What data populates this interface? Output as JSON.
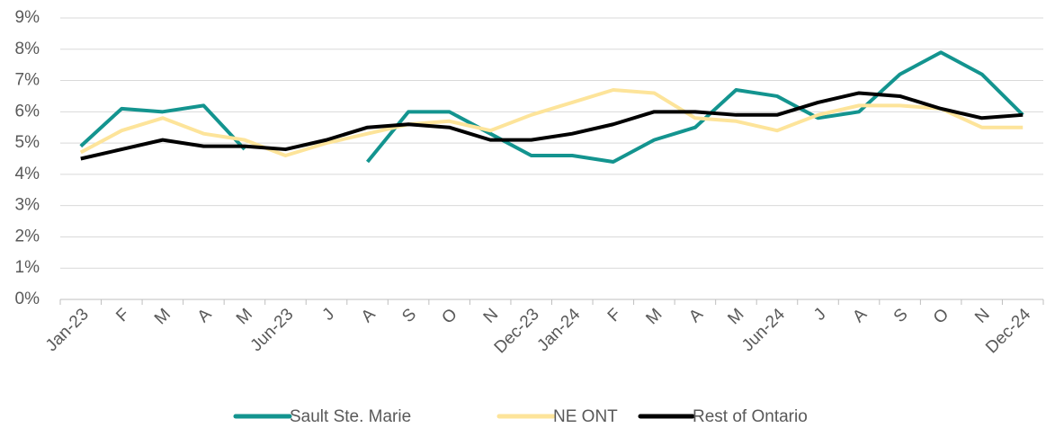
{
  "chart_data": {
    "type": "line",
    "categories": [
      "Jan-23",
      "F",
      "M",
      "A",
      "M",
      "Jun-23",
      "J",
      "A",
      "S",
      "O",
      "N",
      "Dec-23",
      "Jan-24",
      "F",
      "M",
      "A",
      "M",
      "Jun-24",
      "J",
      "A",
      "S",
      "O",
      "N",
      "Dec-24"
    ],
    "series": [
      {
        "name": "Sault Ste. Marie",
        "color": "#13948f",
        "values": [
          4.9,
          6.1,
          6.0,
          6.2,
          4.8,
          null,
          null,
          4.4,
          6.0,
          6.0,
          5.3,
          4.6,
          4.6,
          4.4,
          5.1,
          5.5,
          6.7,
          6.5,
          5.8,
          6.0,
          7.2,
          7.9,
          7.2,
          5.9
        ]
      },
      {
        "name": "NE ONT",
        "color": "#fde49a",
        "values": [
          4.7,
          5.4,
          5.8,
          5.3,
          5.1,
          4.6,
          5.0,
          5.3,
          5.6,
          5.7,
          5.4,
          5.9,
          6.3,
          6.7,
          6.6,
          5.8,
          5.7,
          5.4,
          5.9,
          6.2,
          6.2,
          6.1,
          5.5,
          5.5
        ]
      },
      {
        "name": "Rest of Ontario",
        "color": "#000000",
        "values": [
          4.5,
          4.8,
          5.1,
          4.9,
          4.9,
          4.8,
          5.1,
          5.5,
          5.6,
          5.5,
          5.1,
          5.1,
          5.3,
          5.6,
          6.0,
          6.0,
          5.9,
          5.9,
          6.3,
          6.6,
          6.5,
          6.1,
          5.8,
          5.9
        ]
      }
    ],
    "ylim": [
      0,
      9
    ],
    "yticks": [
      {
        "value": 0,
        "label": "0%"
      },
      {
        "value": 1,
        "label": "1%"
      },
      {
        "value": 2,
        "label": "2%"
      },
      {
        "value": 3,
        "label": "3%"
      },
      {
        "value": 4,
        "label": "4%"
      },
      {
        "value": 5,
        "label": "5%"
      },
      {
        "value": 6,
        "label": "6%"
      },
      {
        "value": 7,
        "label": "7%"
      },
      {
        "value": 8,
        "label": "8%"
      },
      {
        "value": 9,
        "label": "9%"
      }
    ],
    "grid": true,
    "legend": "bottom"
  }
}
